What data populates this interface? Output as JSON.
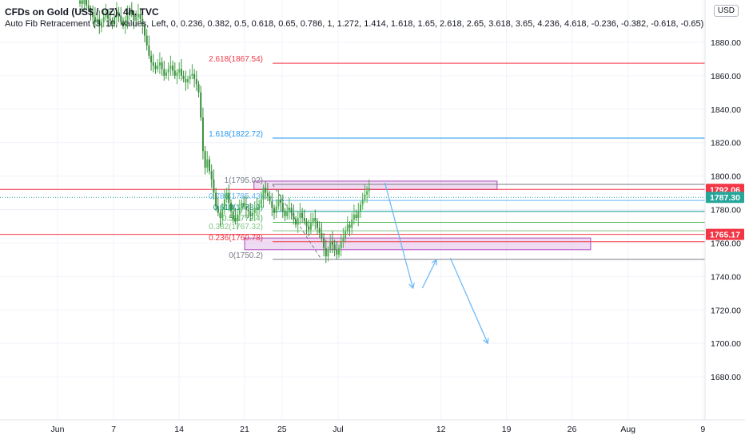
{
  "header": {
    "title": "CFDs on Gold (US$ / OZ), 4h, TVC",
    "indicator": "Auto Fib Retracement (3, 10, Values, Left, 0, 0.236, 0.382, 0.5, 0.618, 0.65, 0.786, 1, 1.272, 1.414, 1.618, 1.65, 2.618, 2.65, 3.618, 3.65, 4.236, 4.618, -0.236, -0.382, -0.618, -0.65)",
    "currency": "USD"
  },
  "chart_data": {
    "type": "candlestick",
    "symbol": "XAUUSD",
    "timeframe": "4h",
    "ylim": [
      1660,
      1885
    ],
    "y_ticks": [
      1680,
      1700,
      1720,
      1740,
      1760,
      1780,
      1800,
      1820,
      1840,
      1860,
      1880
    ],
    "x_ticks": [
      "Jun",
      "7",
      "14",
      "21",
      "25",
      "Jul",
      "12",
      "19",
      "26",
      "Aug",
      "9"
    ],
    "fib_levels": [
      {
        "label": "2.618(1867.54)",
        "value": 1867.54,
        "color": "#f23645"
      },
      {
        "label": "1.618(1822.72)",
        "value": 1822.72,
        "color": "#2196f3"
      },
      {
        "label": "1(1795.02)",
        "value": 1795.02,
        "color": "#787b86"
      },
      {
        "label": "0.786(1785.43)",
        "value": 1785.43,
        "color": "#64b5f6"
      },
      {
        "label": "0.618(1778.9)",
        "value": 1778.9,
        "color": "#009688"
      },
      {
        "label": "0.5(1772.4)",
        "value": 1772.4,
        "color": "#4caf50"
      },
      {
        "label": "0.382(1767.32)",
        "value": 1767.32,
        "color": "#81c784"
      },
      {
        "label": "0.236(1760.78)",
        "value": 1760.78,
        "color": "#f23645"
      },
      {
        "label": "0(1750.2)",
        "value": 1750.2,
        "color": "#787b86"
      }
    ],
    "horizontal_lines": [
      {
        "value": 1792.06,
        "color": "#f23645"
      },
      {
        "value": 1765.17,
        "color": "#f23645"
      }
    ],
    "price_badges": [
      {
        "label": "1792.06",
        "value": 1792.06,
        "color": "#f23645"
      },
      {
        "label": "1787.30",
        "value": 1787.3,
        "color": "#26a69a"
      },
      {
        "label": "1765.17",
        "value": 1765.17,
        "color": "#f23645"
      }
    ],
    "zones": [
      {
        "x_start": 21,
        "x_end": 47,
        "y_top": 1797,
        "y_bottom": 1792
      },
      {
        "x_start": 20,
        "x_end": 57,
        "y_top": 1763,
        "y_bottom": 1756
      }
    ],
    "projection_arrows": [
      {
        "points": [
          [
            35,
            1796
          ],
          [
            38,
            1733
          ]
        ]
      },
      {
        "points": [
          [
            39,
            1733
          ],
          [
            40.5,
            1750
          ]
        ]
      },
      {
        "points": [
          [
            42,
            1751
          ],
          [
            46,
            1700
          ]
        ]
      }
    ],
    "candle_closes": [
      1905,
      1903,
      1906,
      1902,
      1900,
      1898,
      1895,
      1892,
      1894,
      1890,
      1892,
      1895,
      1897,
      1894,
      1893,
      1891,
      1895,
      1898,
      1896,
      1893,
      1890,
      1892,
      1896,
      1899,
      1897,
      1893,
      1895,
      1897,
      1894,
      1890,
      1884,
      1878,
      1872,
      1868,
      1866,
      1864,
      1866,
      1868,
      1864,
      1860,
      1862,
      1864,
      1866,
      1863,
      1860,
      1862,
      1864,
      1860,
      1858,
      1856,
      1858,
      1860,
      1861,
      1858,
      1855,
      1850,
      1835,
      1815,
      1805,
      1810,
      1803,
      1798,
      1790,
      1782,
      1778,
      1775,
      1780,
      1786,
      1790,
      1784,
      1779,
      1775,
      1773,
      1777,
      1781,
      1784,
      1782,
      1780,
      1779,
      1776,
      1778,
      1781,
      1780,
      1783,
      1786,
      1793,
      1790,
      1788,
      1785,
      1781,
      1778,
      1782,
      1786,
      1784,
      1779,
      1776,
      1779,
      1781,
      1778,
      1774,
      1771,
      1775,
      1778,
      1775,
      1773,
      1770,
      1768,
      1772,
      1775,
      1773,
      1769,
      1766,
      1763,
      1757,
      1752,
      1756,
      1761,
      1759,
      1756,
      1753,
      1757,
      1761,
      1763,
      1767,
      1771,
      1769,
      1774,
      1777,
      1775,
      1779,
      1783,
      1786,
      1789,
      1791,
      1793
    ]
  }
}
